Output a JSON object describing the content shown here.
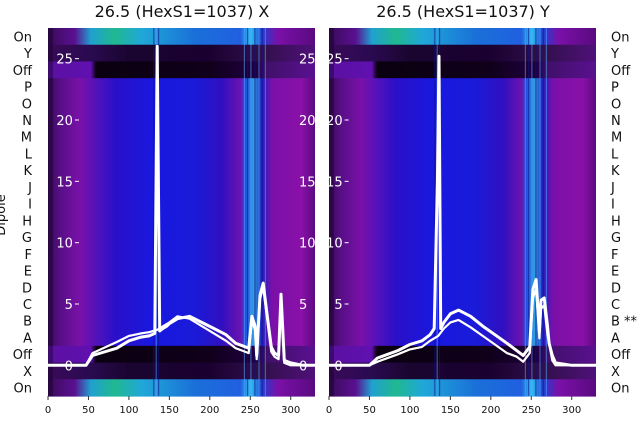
{
  "chart_data": [
    {
      "type": "heatmap",
      "title": "26.5 (HexS1=1037) X",
      "ylabel": "Dipole",
      "xlim": [
        0,
        330
      ],
      "xticks": [
        0,
        50,
        100,
        150,
        200,
        250,
        300
      ],
      "inner_yticks": [
        0,
        5,
        10,
        15,
        20,
        25
      ],
      "inner_ylim": [
        -2.5,
        27.5
      ],
      "row_labels": [
        "On",
        "Y",
        "Off",
        "P",
        "O",
        "N",
        "M",
        "L",
        "K",
        "J",
        "I",
        "H",
        "G",
        "F",
        "E",
        "D",
        "C",
        "B",
        "A",
        "Off",
        "X",
        "On"
      ],
      "overlay_series": [
        {
          "x": [
            0,
            40,
            47,
            55,
            85,
            100,
            115,
            125,
            132,
            135,
            138,
            142,
            147,
            150,
            160,
            175,
            190,
            205,
            220,
            232,
            240,
            248,
            252,
            256,
            258,
            262,
            266,
            270,
            276,
            280,
            285,
            288,
            292,
            300,
            315,
            330
          ],
          "y": [
            0,
            0,
            0,
            0.8,
            1.4,
            2,
            2.3,
            2.4,
            2.6,
            26,
            2.8,
            3,
            3.2,
            3.4,
            3.8,
            4,
            3.5,
            3,
            2.5,
            1.8,
            1.6,
            1.4,
            4,
            3.2,
            0.8,
            5.7,
            6.7,
            4.5,
            1.5,
            1,
            0.8,
            5.8,
            0.4,
            0.2,
            0,
            0
          ]
        },
        {
          "x": [
            0,
            40,
            47,
            55,
            85,
            100,
            115,
            125,
            135,
            140,
            150,
            160,
            175,
            190,
            205,
            220,
            232,
            240,
            248,
            252,
            256,
            258,
            262,
            266,
            270,
            276,
            280,
            285,
            288,
            292,
            300,
            315,
            330
          ],
          "y": [
            0,
            0,
            0,
            1,
            1.9,
            2.4,
            2.6,
            2.7,
            2.9,
            3.1,
            3.5,
            4,
            3.8,
            3.2,
            2.6,
            2,
            1.4,
            1.2,
            1,
            3.6,
            2.9,
            0.5,
            5.4,
            6.4,
            4.2,
            1.1,
            0.7,
            0.5,
            5.5,
            0.2,
            0,
            0,
            0
          ]
        }
      ]
    },
    {
      "type": "heatmap",
      "title": "26.5 (HexS1=1037) Y",
      "xlim": [
        0,
        330
      ],
      "xticks": [
        0,
        50,
        100,
        150,
        200,
        250,
        300
      ],
      "inner_yticks": [
        0,
        5,
        10,
        15,
        20,
        25
      ],
      "inner_ylim": [
        -2.5,
        27.5
      ],
      "row_labels": [
        "On",
        "Y",
        "Off",
        "P",
        "O",
        "N",
        "M",
        "L",
        "K",
        "J",
        "I",
        "H",
        "G",
        "F",
        "E",
        "D",
        "C",
        "B **",
        "A",
        "Off",
        "X",
        "On"
      ],
      "overlay_series": [
        {
          "x": [
            0,
            40,
            50,
            60,
            85,
            100,
            115,
            125,
            130,
            134,
            136,
            138,
            142,
            150,
            160,
            175,
            190,
            205,
            220,
            232,
            240,
            248,
            252,
            256,
            260,
            262,
            266,
            270,
            272,
            276,
            280,
            300,
            330
          ],
          "y": [
            0,
            0,
            0,
            0.6,
            1.2,
            1.7,
            2,
            2.5,
            3,
            15,
            25.2,
            3,
            3.5,
            4.2,
            4.5,
            4,
            3.2,
            2.5,
            1.8,
            1.2,
            0.8,
            1.5,
            6.2,
            7,
            2.8,
            5.3,
            5.5,
            3.2,
            1.8,
            0.8,
            0.2,
            0,
            0
          ]
        },
        {
          "x": [
            0,
            40,
            50,
            60,
            85,
            100,
            115,
            125,
            135,
            142,
            150,
            160,
            175,
            190,
            205,
            220,
            232,
            240,
            248,
            252,
            256,
            260,
            262,
            266,
            270,
            276,
            280,
            300,
            330
          ],
          "y": [
            0,
            0,
            0,
            0.3,
            0.9,
            1.3,
            1.5,
            2,
            2.4,
            3,
            3.5,
            3.7,
            3.1,
            2.4,
            1.7,
            1,
            0.7,
            0.3,
            1,
            5.5,
            6.2,
            2.2,
            4.6,
            4.9,
            2.5,
            0.4,
            0,
            0,
            0
          ]
        }
      ]
    }
  ]
}
